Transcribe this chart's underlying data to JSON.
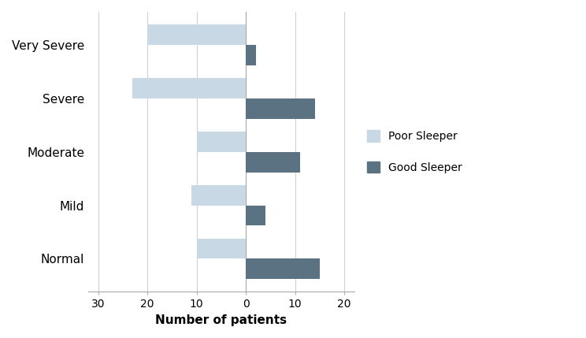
{
  "categories": [
    "Normal",
    "Mild",
    "Moderate",
    "Severe",
    "Very Severe"
  ],
  "poor_sleeper": [
    10,
    11,
    10,
    23,
    20
  ],
  "good_sleeper": [
    15,
    4,
    11,
    14,
    2
  ],
  "poor_color": "#c8d8e4",
  "good_color": "#5a7282",
  "xlabel": "Number of patients",
  "xlim_left": -32,
  "xlim_right": 22,
  "xticks": [
    -30,
    -20,
    -10,
    0,
    10,
    20
  ],
  "xticklabels": [
    "30",
    "20",
    "10",
    "0",
    "10",
    "20"
  ],
  "legend_poor": "Poor Sleeper",
  "legend_good": "Good Sleeper",
  "background_color": "#ffffff",
  "bar_height": 0.38,
  "grid_color": "#d0d0d0"
}
